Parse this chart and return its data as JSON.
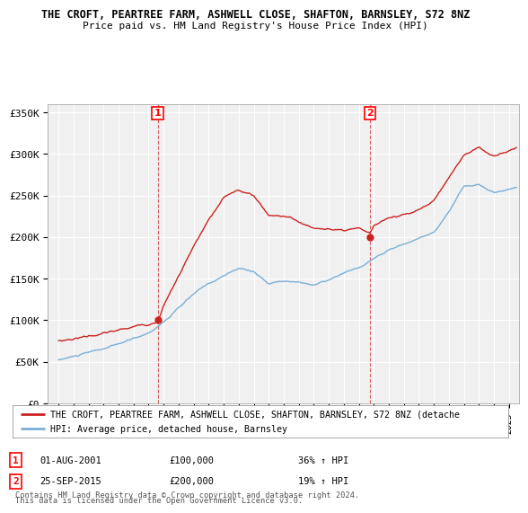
{
  "title": "THE CROFT, PEARTREE FARM, ASHWELL CLOSE, SHAFTON, BARNSLEY, S72 8NZ",
  "subtitle": "Price paid vs. HM Land Registry's House Price Index (HPI)",
  "ylim": [
    0,
    360000
  ],
  "yticks": [
    0,
    50000,
    100000,
    150000,
    200000,
    250000,
    300000,
    350000
  ],
  "ytick_labels": [
    "£0",
    "£50K",
    "£100K",
    "£150K",
    "£200K",
    "£250K",
    "£300K",
    "£350K"
  ],
  "hpi_color": "#7bafd4",
  "price_color": "#cc2222",
  "marker1_x": 2001.6,
  "marker1_y": 100000,
  "marker2_x": 2015.75,
  "marker2_y": 200000,
  "marker1_date_str": "01-AUG-2001",
  "marker1_price_str": "£100,000",
  "marker1_pct": "36% ↑ HPI",
  "marker2_date_str": "25-SEP-2015",
  "marker2_price_str": "£200,000",
  "marker2_pct": "19% ↑ HPI",
  "legend_entry1": "THE CROFT, PEARTREE FARM, ASHWELL CLOSE, SHAFTON, BARNSLEY, S72 8NZ (detache",
  "legend_entry2": "HPI: Average price, detached house, Barnsley",
  "footnote1": "Contains HM Land Registry data © Crown copyright and database right 2024.",
  "footnote2": "This data is licensed under the Open Government Licence v3.0.",
  "plot_bg_color": "#f0f0f0",
  "grid_color": "#ffffff",
  "xlim_left": 1994.3,
  "xlim_right": 2025.7
}
